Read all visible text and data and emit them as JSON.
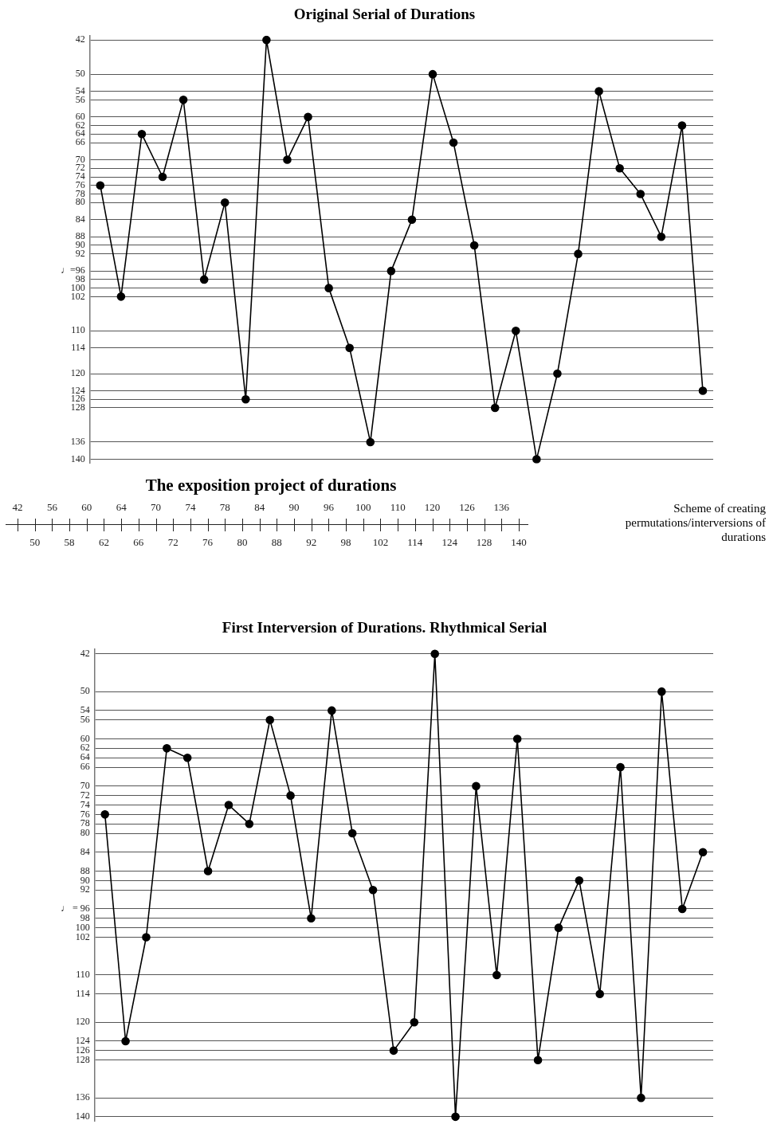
{
  "chart_data": [
    {
      "type": "line",
      "title": "Original Serial of Durations",
      "categories": [
        null,
        null,
        null,
        null,
        null,
        null,
        null,
        null,
        null,
        null,
        null,
        null,
        null,
        null,
        null,
        null,
        null,
        null,
        null,
        null,
        null,
        null,
        null,
        null,
        null,
        null,
        null,
        null,
        null,
        null
      ],
      "values": [
        76,
        102,
        64,
        74,
        56,
        98,
        80,
        126,
        42,
        70,
        60,
        100,
        114,
        136,
        96,
        84,
        50,
        66,
        90,
        128,
        110,
        140,
        120,
        92,
        54,
        72,
        78,
        88,
        62,
        124
      ],
      "color": "#000000",
      "ylim": [
        141,
        41
      ],
      "yticks": [
        42,
        50,
        54,
        56,
        60,
        62,
        64,
        66,
        70,
        72,
        74,
        76,
        78,
        80,
        84,
        88,
        90,
        92,
        {
          "value": 96,
          "label": "♩=96"
        },
        98,
        100,
        102,
        110,
        114,
        120,
        124,
        126,
        128,
        136,
        140
      ],
      "grid": "y",
      "tick_labels": "y",
      "marker": "circle"
    },
    {
      "type": "other",
      "title": "The exposition project of durations",
      "annotations": [
        "42",
        "50",
        "56",
        "58",
        "60",
        "62",
        "64",
        "66",
        "70",
        "72",
        "74",
        "76",
        "78",
        "80",
        "84",
        "88",
        "90",
        "92",
        "96",
        "98",
        "100",
        "102",
        "110",
        "114",
        "120",
        "124",
        "126",
        "128",
        "136",
        "140",
        "Scheme of creating permutations/interversions of durations"
      ]
    },
    {
      "type": "line",
      "title": "First Interversion of Durations. Rhythmical Serial",
      "categories": [
        null,
        null,
        null,
        null,
        null,
        null,
        null,
        null,
        null,
        null,
        null,
        null,
        null,
        null,
        null,
        null,
        null,
        null,
        null,
        null,
        null,
        null,
        null,
        null,
        null,
        null,
        null,
        null,
        null,
        null
      ],
      "values": [
        76,
        124,
        102,
        62,
        64,
        88,
        74,
        78,
        56,
        72,
        98,
        54,
        80,
        92,
        126,
        120,
        42,
        140,
        70,
        110,
        60,
        128,
        100,
        90,
        114,
        66,
        136,
        50,
        96,
        84
      ],
      "color": "#000000",
      "ylim": [
        141,
        41
      ],
      "yticks": [
        42,
        50,
        54,
        56,
        60,
        62,
        64,
        66,
        70,
        72,
        74,
        76,
        78,
        80,
        84,
        88,
        90,
        92,
        {
          "value": 96,
          "label": "♩ = 96"
        },
        98,
        100,
        102,
        110,
        114,
        120,
        124,
        126,
        128,
        136,
        140
      ],
      "grid": "y",
      "tick_labels": "y",
      "marker": "circle"
    }
  ]
}
